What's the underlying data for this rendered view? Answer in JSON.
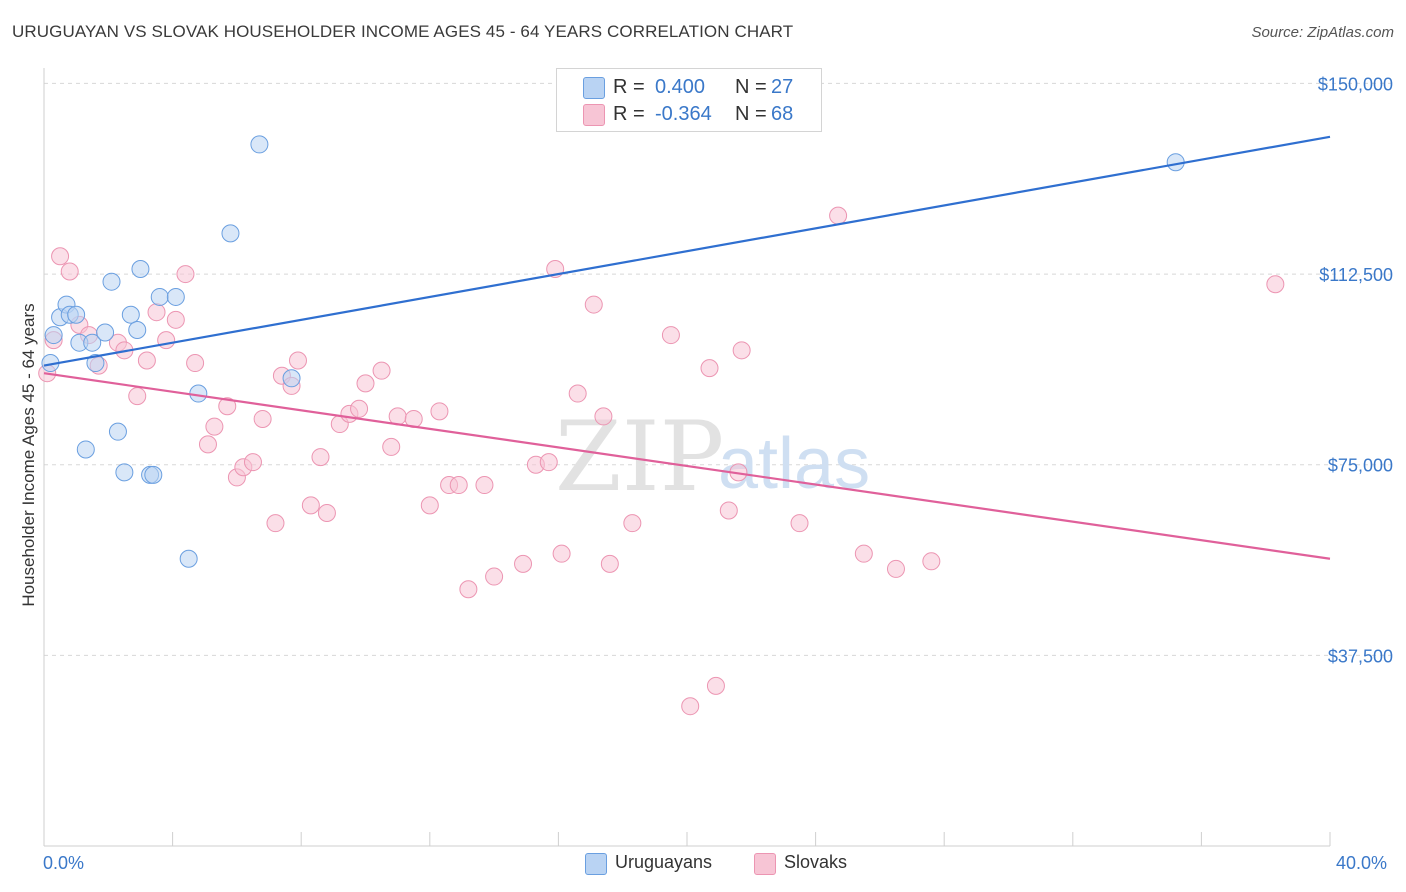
{
  "title": "URUGUAYAN VS SLOVAK HOUSEHOLDER INCOME AGES 45 - 64 YEARS CORRELATION CHART",
  "source": "Source: ZipAtlas.com",
  "watermark": {
    "zip": "ZIP",
    "atlas": "atlas"
  },
  "colors": {
    "blue_fill": "#b9d3f3",
    "blue_stroke": "#6a9fe0",
    "blue_line": "#2f6fd0",
    "pink_fill": "#f7c5d5",
    "pink_stroke": "#ec95b2",
    "pink_line": "#e0609a",
    "accent_text": "#3a78c9",
    "grid": "#d8d8d8"
  },
  "legend_top": {
    "rows": [
      {
        "r_label": "R =",
        "r_value": "0.400",
        "n_label": "N =",
        "n_value": "27"
      },
      {
        "r_label": "R =",
        "r_value": "-0.364",
        "n_label": "N =",
        "n_value": "68"
      }
    ]
  },
  "legend_bottom": {
    "items": [
      {
        "label": "Uruguayans"
      },
      {
        "label": "Slovaks"
      }
    ]
  },
  "chart_data": {
    "type": "scatter",
    "title": "URUGUAYAN VS SLOVAK HOUSEHOLDER INCOME AGES 45 - 64 YEARS CORRELATION CHART",
    "xlabel": "",
    "ylabel": "Householder Income Ages 45 - 64 years",
    "xlim": [
      0,
      40
    ],
    "ylim": [
      0,
      155000
    ],
    "x_tick_labels": [
      "0.0%",
      "40.0%"
    ],
    "y_ticks": [
      {
        "value": 37500,
        "label": "$37,500"
      },
      {
        "value": 75000,
        "label": "$75,000"
      },
      {
        "value": 112500,
        "label": "$112,500"
      },
      {
        "value": 150000,
        "label": "$150,000"
      }
    ],
    "series": [
      {
        "name": "Uruguayans",
        "color": "#6a9fe0",
        "r": "0.400",
        "n": "27",
        "trend": {
          "x": [
            0,
            40
          ],
          "y": [
            94500,
            139500
          ]
        },
        "points": [
          [
            0.2,
            95000
          ],
          [
            0.3,
            100500
          ],
          [
            0.5,
            104000
          ],
          [
            0.7,
            106500
          ],
          [
            0.8,
            104500
          ],
          [
            1.0,
            104500
          ],
          [
            1.1,
            99000
          ],
          [
            1.3,
            78000
          ],
          [
            1.5,
            99000
          ],
          [
            1.6,
            95000
          ],
          [
            1.9,
            101000
          ],
          [
            2.1,
            111000
          ],
          [
            2.3,
            81500
          ],
          [
            2.5,
            73500
          ],
          [
            2.7,
            104500
          ],
          [
            2.9,
            101500
          ],
          [
            3.0,
            113500
          ],
          [
            3.3,
            73000
          ],
          [
            3.4,
            73000
          ],
          [
            3.6,
            108000
          ],
          [
            4.1,
            108000
          ],
          [
            4.5,
            56500
          ],
          [
            4.8,
            89000
          ],
          [
            5.8,
            120500
          ],
          [
            6.7,
            138000
          ],
          [
            7.7,
            92000
          ],
          [
            35.2,
            134500
          ]
        ]
      },
      {
        "name": "Slovaks",
        "color": "#ec95b2",
        "r": "-0.364",
        "n": "68",
        "trend": {
          "x": [
            0,
            40
          ],
          "y": [
            93000,
            56500
          ]
        },
        "points": [
          [
            0.3,
            99500
          ],
          [
            0.5,
            116000
          ],
          [
            0.8,
            113000
          ],
          [
            1.1,
            102500
          ],
          [
            1.4,
            100500
          ],
          [
            1.7,
            94500
          ],
          [
            2.3,
            99000
          ],
          [
            2.5,
            97500
          ],
          [
            2.9,
            88500
          ],
          [
            3.2,
            95500
          ],
          [
            3.5,
            105000
          ],
          [
            3.8,
            99500
          ],
          [
            4.1,
            103500
          ],
          [
            4.4,
            112500
          ],
          [
            4.7,
            95000
          ],
          [
            5.1,
            79000
          ],
          [
            5.3,
            82500
          ],
          [
            5.7,
            86500
          ],
          [
            6.0,
            72500
          ],
          [
            6.2,
            74500
          ],
          [
            6.5,
            75500
          ],
          [
            6.8,
            84000
          ],
          [
            7.2,
            63500
          ],
          [
            7.4,
            92500
          ],
          [
            7.7,
            90500
          ],
          [
            7.9,
            95500
          ],
          [
            8.3,
            67000
          ],
          [
            8.6,
            76500
          ],
          [
            8.8,
            65500
          ],
          [
            9.2,
            83000
          ],
          [
            9.5,
            85000
          ],
          [
            9.8,
            86000
          ],
          [
            10.0,
            91000
          ],
          [
            10.5,
            93500
          ],
          [
            10.8,
            78500
          ],
          [
            11.0,
            84500
          ],
          [
            11.5,
            84000
          ],
          [
            12.0,
            67000
          ],
          [
            12.3,
            85500
          ],
          [
            12.6,
            71000
          ],
          [
            12.9,
            71000
          ],
          [
            13.2,
            50500
          ],
          [
            13.7,
            71000
          ],
          [
            14.0,
            53000
          ],
          [
            14.9,
            55500
          ],
          [
            15.3,
            75000
          ],
          [
            15.7,
            75500
          ],
          [
            15.9,
            113500
          ],
          [
            16.1,
            57500
          ],
          [
            16.6,
            89000
          ],
          [
            17.1,
            106500
          ],
          [
            17.4,
            84500
          ],
          [
            17.6,
            55500
          ],
          [
            18.3,
            63500
          ],
          [
            19.5,
            100500
          ],
          [
            20.1,
            27500
          ],
          [
            20.7,
            94000
          ],
          [
            20.9,
            31500
          ],
          [
            21.3,
            66000
          ],
          [
            21.6,
            73500
          ],
          [
            21.7,
            97500
          ],
          [
            23.5,
            63500
          ],
          [
            24.7,
            124000
          ],
          [
            25.5,
            57500
          ],
          [
            26.5,
            54500
          ],
          [
            27.6,
            56000
          ],
          [
            38.3,
            110500
          ],
          [
            0.1,
            93000
          ]
        ]
      }
    ]
  }
}
